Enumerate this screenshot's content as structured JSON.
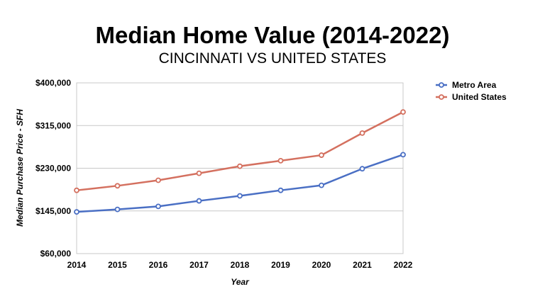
{
  "chart_data": {
    "type": "line",
    "title": "Median Home Value (2014-2022)",
    "subtitle": "CINCINNATI VS UNITED STATES",
    "xlabel": "Year",
    "ylabel": "Median Purchase Price - SFH",
    "categories": [
      "2014",
      "2015",
      "2016",
      "2017",
      "2018",
      "2019",
      "2020",
      "2021",
      "2022"
    ],
    "ylim": [
      60000,
      400000
    ],
    "yticks": [
      60000,
      145000,
      230000,
      315000,
      400000
    ],
    "ytick_labels": [
      "$60,000",
      "$145,000",
      "$230,000",
      "$315,000",
      "$400,000"
    ],
    "grid": true,
    "legend_position": "top-right",
    "series": [
      {
        "name": "Metro Area",
        "color": "#4a6fc4",
        "values": [
          143000,
          148000,
          154000,
          165000,
          175000,
          186000,
          196000,
          229000,
          257000
        ]
      },
      {
        "name": "United States",
        "color": "#d4705f",
        "values": [
          186000,
          195000,
          206000,
          220000,
          234000,
          245000,
          256000,
          300000,
          342000
        ]
      }
    ]
  }
}
